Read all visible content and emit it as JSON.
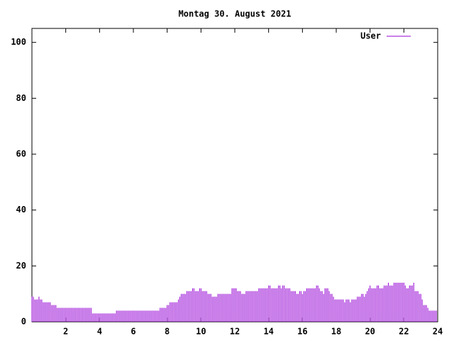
{
  "chart_data": {
    "type": "impulse",
    "title": "Montag 30. August 2021",
    "xlim": [
      0,
      24
    ],
    "xticks": [
      2,
      4,
      6,
      8,
      10,
      12,
      14,
      16,
      18,
      20,
      22,
      24
    ],
    "ylim": [
      0,
      105
    ],
    "yticks": [
      0,
      20,
      40,
      60,
      80,
      100
    ],
    "legend": "top-right",
    "x": [
      0,
      0.083,
      0.167,
      0.25,
      0.333,
      0.417,
      0.5,
      0.583,
      0.667,
      0.75,
      0.833,
      0.917,
      1,
      1.083,
      1.167,
      1.25,
      1.333,
      1.417,
      1.5,
      1.583,
      1.667,
      1.75,
      1.833,
      1.917,
      2,
      2.083,
      2.167,
      2.25,
      2.333,
      2.417,
      2.5,
      2.583,
      2.667,
      2.75,
      2.833,
      2.917,
      3,
      3.083,
      3.167,
      3.25,
      3.333,
      3.417,
      3.5,
      3.583,
      3.667,
      3.75,
      3.833,
      3.917,
      4,
      4.083,
      4.167,
      4.25,
      4.333,
      4.417,
      4.5,
      4.583,
      4.667,
      4.75,
      4.833,
      4.917,
      5,
      5.083,
      5.167,
      5.25,
      5.333,
      5.417,
      5.5,
      5.583,
      5.667,
      5.75,
      5.833,
      5.917,
      6,
      6.083,
      6.167,
      6.25,
      6.333,
      6.417,
      6.5,
      6.583,
      6.667,
      6.75,
      6.833,
      6.917,
      7,
      7.083,
      7.167,
      7.25,
      7.333,
      7.417,
      7.5,
      7.583,
      7.667,
      7.75,
      7.833,
      7.917,
      8,
      8.083,
      8.167,
      8.25,
      8.333,
      8.417,
      8.5,
      8.583,
      8.667,
      8.75,
      8.833,
      8.917,
      9,
      9.083,
      9.167,
      9.25,
      9.333,
      9.417,
      9.5,
      9.583,
      9.667,
      9.75,
      9.833,
      9.917,
      10,
      10.083,
      10.167,
      10.25,
      10.333,
      10.417,
      10.5,
      10.583,
      10.667,
      10.75,
      10.833,
      10.917,
      11,
      11.083,
      11.167,
      11.25,
      11.333,
      11.417,
      11.5,
      11.583,
      11.667,
      11.75,
      11.833,
      11.917,
      12,
      12.083,
      12.167,
      12.25,
      12.333,
      12.417,
      12.5,
      12.583,
      12.667,
      12.75,
      12.833,
      12.917,
      13,
      13.083,
      13.167,
      13.25,
      13.333,
      13.417,
      13.5,
      13.583,
      13.667,
      13.75,
      13.833,
      13.917,
      14,
      14.083,
      14.167,
      14.25,
      14.333,
      14.417,
      14.5,
      14.583,
      14.667,
      14.75,
      14.833,
      14.917,
      15,
      15.083,
      15.167,
      15.25,
      15.333,
      15.417,
      15.5,
      15.583,
      15.667,
      15.75,
      15.833,
      15.917,
      16,
      16.083,
      16.167,
      16.25,
      16.333,
      16.417,
      16.5,
      16.583,
      16.667,
      16.75,
      16.833,
      16.917,
      17,
      17.083,
      17.167,
      17.25,
      17.333,
      17.417,
      17.5,
      17.583,
      17.667,
      17.75,
      17.833,
      17.917,
      18,
      18.083,
      18.167,
      18.25,
      18.333,
      18.417,
      18.5,
      18.583,
      18.667,
      18.75,
      18.833,
      18.917,
      19,
      19.083,
      19.167,
      19.25,
      19.333,
      19.417,
      19.5,
      19.583,
      19.667,
      19.75,
      19.833,
      19.917,
      20,
      20.083,
      20.167,
      20.25,
      20.333,
      20.417,
      20.5,
      20.583,
      20.667,
      20.75,
      20.833,
      20.917,
      21,
      21.083,
      21.167,
      21.25,
      21.333,
      21.417,
      21.5,
      21.583,
      21.667,
      21.75,
      21.833,
      21.917,
      22,
      22.083,
      22.167,
      22.25,
      22.333,
      22.417,
      22.5,
      22.583,
      22.667,
      22.75,
      22.833,
      22.917,
      23,
      23.083,
      23.167,
      23.25,
      23.333,
      23.417,
      23.5,
      23.583,
      23.667,
      23.75,
      23.833,
      23.917
    ],
    "series": [
      {
        "name": "User",
        "color": "#9400d3",
        "values": [
          9,
          9,
          8,
          8,
          8,
          9,
          8,
          8,
          7,
          7,
          7,
          7,
          7,
          7,
          6,
          6,
          6,
          6,
          5,
          5,
          5,
          5,
          5,
          5,
          5,
          5,
          5,
          5,
          5,
          5,
          5,
          5,
          5,
          5,
          5,
          5,
          5,
          5,
          5,
          5,
          5,
          5,
          5,
          3,
          3,
          3,
          3,
          3,
          3,
          3,
          3,
          3,
          3,
          3,
          3,
          3,
          3,
          3,
          3,
          3,
          4,
          4,
          4,
          4,
          4,
          4,
          4,
          4,
          4,
          4,
          4,
          4,
          4,
          4,
          4,
          4,
          4,
          4,
          4,
          4,
          4,
          4,
          4,
          4,
          4,
          4,
          4,
          4,
          4,
          4,
          4,
          5,
          5,
          5,
          5,
          5,
          6,
          6,
          7,
          7,
          7,
          7,
          7,
          7,
          8,
          9,
          10,
          10,
          10,
          10,
          11,
          11,
          11,
          11,
          12,
          12,
          11,
          11,
          11,
          12,
          12,
          11,
          11,
          11,
          11,
          10,
          10,
          10,
          9,
          9,
          9,
          9,
          10,
          10,
          10,
          10,
          10,
          10,
          10,
          10,
          10,
          10,
          12,
          12,
          12,
          12,
          11,
          11,
          11,
          10,
          10,
          10,
          11,
          11,
          11,
          11,
          11,
          11,
          11,
          11,
          11,
          12,
          12,
          12,
          12,
          12,
          12,
          12,
          13,
          13,
          12,
          12,
          12,
          12,
          12,
          13,
          13,
          12,
          13,
          13,
          12,
          12,
          12,
          12,
          11,
          11,
          11,
          11,
          10,
          10,
          11,
          11,
          10,
          11,
          11,
          12,
          12,
          12,
          12,
          12,
          12,
          12,
          13,
          13,
          12,
          11,
          11,
          10,
          12,
          12,
          12,
          11,
          10,
          10,
          9,
          8,
          8,
          8,
          8,
          8,
          8,
          8,
          7,
          8,
          8,
          8,
          7,
          8,
          8,
          8,
          8,
          9,
          9,
          9,
          10,
          10,
          9,
          10,
          11,
          12,
          13,
          12,
          12,
          12,
          12,
          13,
          13,
          12,
          12,
          12,
          13,
          13,
          13,
          14,
          13,
          13,
          13,
          14,
          14,
          14,
          14,
          14,
          14,
          14,
          14,
          13,
          12,
          12,
          13,
          13,
          13,
          14,
          11,
          11,
          11,
          10,
          10,
          8,
          6,
          6,
          6,
          5,
          4,
          4,
          4,
          4,
          4,
          4
        ]
      }
    ]
  }
}
